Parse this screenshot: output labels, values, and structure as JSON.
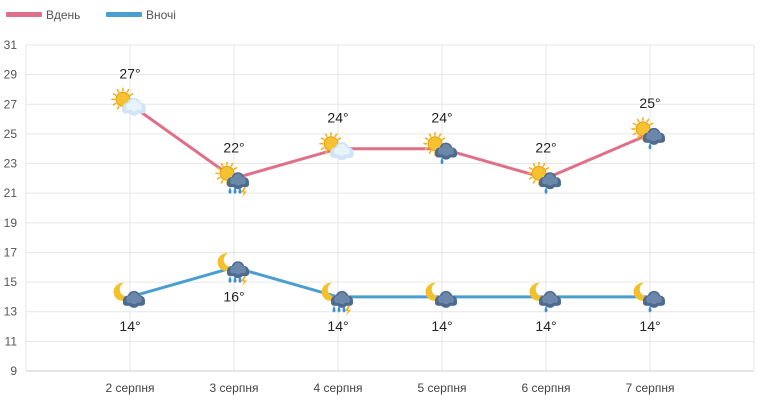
{
  "chart_data": {
    "type": "line",
    "categories": [
      "2 серпня",
      "3 серпня",
      "4 серпня",
      "5 серпня",
      "6 серпня",
      "7 серпня"
    ],
    "ylim": [
      9,
      31
    ],
    "yticks": [
      9,
      11,
      13,
      15,
      17,
      19,
      21,
      23,
      25,
      27,
      29,
      31
    ],
    "grid": true,
    "legend_position": "top-left",
    "series": [
      {
        "name": "Вдень",
        "color": "#e0708a",
        "values": [
          27,
          22,
          24,
          24,
          22,
          25
        ],
        "labels": [
          "27°",
          "22°",
          "24°",
          "24°",
          "22°",
          "25°"
        ],
        "icons": [
          "sun-cloud-icon",
          "sun-cloud-rain-thunder-icon",
          "sun-cloud-icon",
          "sun-cloud-rain-icon",
          "sun-cloud-rain-icon",
          "sun-cloud-rain-icon"
        ]
      },
      {
        "name": "Вночі",
        "color": "#4a9fd0",
        "values": [
          14,
          16,
          14,
          14,
          14,
          14
        ],
        "labels": [
          "14°",
          "16°",
          "14°",
          "14°",
          "14°",
          "14°"
        ],
        "icons": [
          "moon-cloud-icon",
          "moon-cloud-rain-thunder-icon",
          "moon-cloud-rain-thunder-icon",
          "moon-cloud-icon",
          "moon-cloud-rain-icon",
          "moon-cloud-rain-icon"
        ]
      }
    ]
  }
}
